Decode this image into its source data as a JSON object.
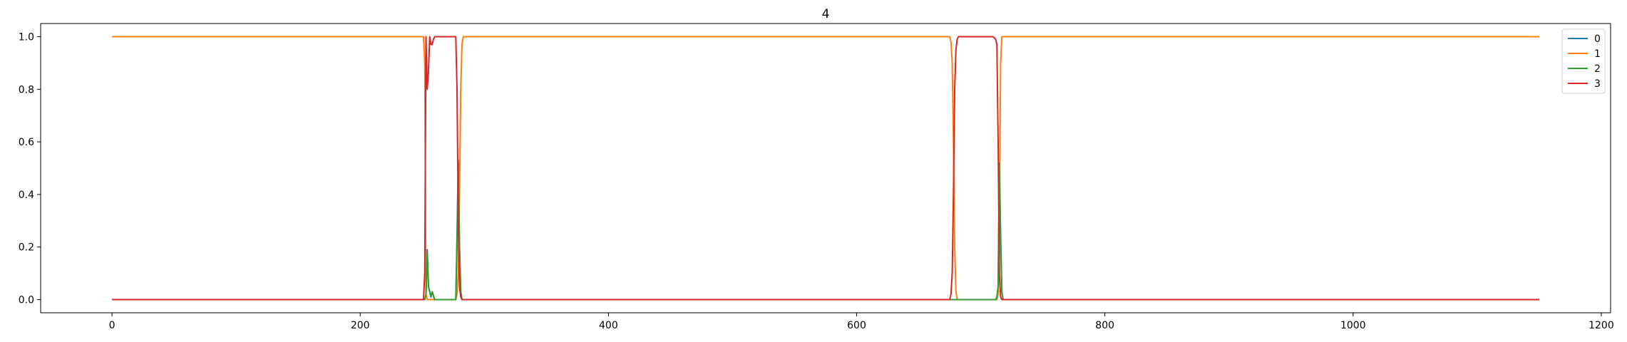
{
  "chart_data": {
    "type": "line",
    "title": "4",
    "xlabel": "",
    "ylabel": "",
    "xlim": [
      -57.5,
      1207.5
    ],
    "ylim": [
      -0.05,
      1.05
    ],
    "xticks": [
      0,
      200,
      400,
      600,
      800,
      1000,
      1200
    ],
    "yticks": [
      0.0,
      0.2,
      0.4,
      0.6,
      0.8,
      1.0
    ],
    "xtick_labels": [
      "0",
      "200",
      "400",
      "600",
      "800",
      "1000",
      "1200"
    ],
    "ytick_labels": [
      "0.0",
      "0.2",
      "0.4",
      "0.6",
      "0.8",
      "1.0"
    ],
    "grid": false,
    "legend_position": "top-right",
    "series": [
      {
        "name": "0",
        "color": "#1f77b4",
        "x": [
          0,
          252,
          253,
          254,
          255,
          256,
          257,
          258,
          260,
          277,
          278,
          279,
          280,
          281,
          282,
          713,
          714,
          715,
          716,
          717,
          718,
          1150
        ],
        "y": [
          0,
          0,
          0.02,
          0.19,
          0.05,
          0.03,
          0.01,
          0.03,
          0,
          0,
          0.25,
          0.53,
          0.2,
          0.03,
          0,
          0,
          0.05,
          0.52,
          0.25,
          0.03,
          0,
          0
        ]
      },
      {
        "name": "1",
        "color": "#ff7f0e",
        "x": [
          0,
          251,
          252,
          253,
          254,
          255,
          277,
          278,
          279,
          280,
          281,
          282,
          283,
          284,
          675,
          676,
          677,
          678,
          679,
          680,
          681,
          713,
          714,
          715,
          716,
          717,
          718,
          1150
        ],
        "y": [
          1,
          1,
          0.9,
          0.02,
          0,
          0,
          0,
          0.02,
          0.1,
          0.4,
          0.8,
          0.97,
          1,
          1,
          1,
          0.98,
          0.9,
          0.6,
          0.2,
          0.03,
          0,
          0,
          0.02,
          0.3,
          0.9,
          1,
          1,
          1
        ]
      },
      {
        "name": "2",
        "color": "#2ca02c",
        "x": [
          0,
          252,
          253,
          254,
          255,
          256,
          257,
          258,
          260,
          277,
          278,
          279,
          280,
          281,
          282,
          712,
          713,
          714,
          715,
          716,
          717,
          718,
          1150
        ],
        "y": [
          0,
          0,
          0.02,
          0.18,
          0.05,
          0.03,
          0.01,
          0.03,
          0,
          0,
          0.2,
          0.52,
          0.2,
          0.03,
          0,
          0,
          0.01,
          0.05,
          0.52,
          0.2,
          0.03,
          0,
          0
        ]
      },
      {
        "name": "3",
        "color": "#d62728",
        "x": [
          0,
          251,
          252,
          253,
          254,
          255,
          256,
          257,
          258,
          259,
          260,
          262,
          277,
          278,
          279,
          280,
          281,
          282,
          675,
          676,
          677,
          678,
          679,
          680,
          681,
          682,
          710,
          712,
          713,
          714,
          715,
          716,
          717,
          1150
        ],
        "y": [
          0,
          0,
          0.1,
          1,
          0.8,
          0.87,
          1,
          0.97,
          0.97,
          0.99,
          1,
          1,
          1,
          0.8,
          0.3,
          0.05,
          0.01,
          0,
          0,
          0.02,
          0.1,
          0.4,
          0.8,
          0.95,
          0.99,
          1,
          1,
          0.99,
          0.97,
          0.6,
          0.1,
          0.01,
          0,
          0
        ]
      }
    ]
  }
}
